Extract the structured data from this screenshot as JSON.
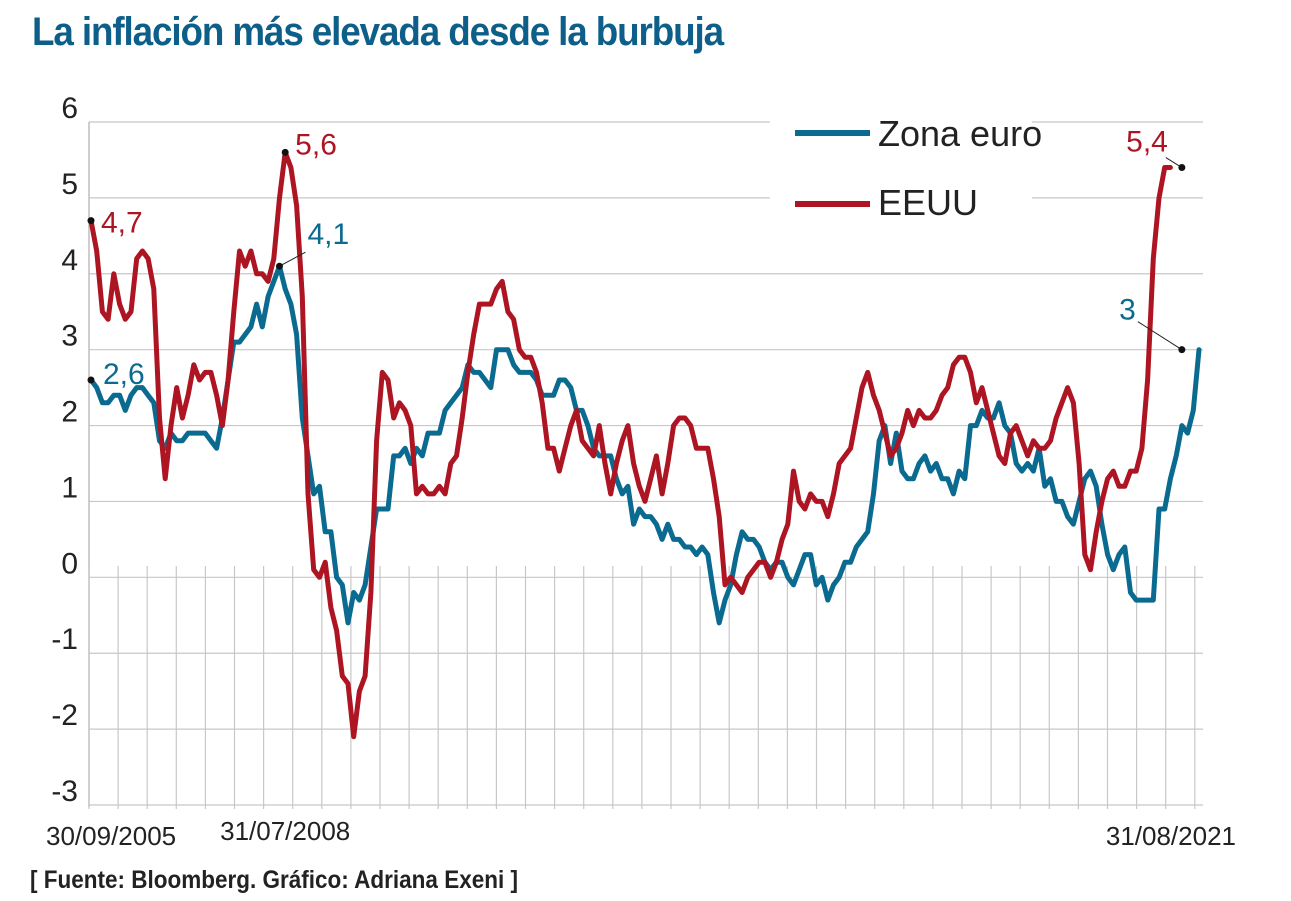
{
  "title": "La inflación más elevada desde la burbuja",
  "source": "[ Fuente: Bloomberg. Gráfico: Adriana Exeni ]",
  "colors": {
    "title": "#0d5f8a",
    "zona_euro": "#0a6a90",
    "eeuu": "#ad1523",
    "grid": "#c8c8c8",
    "text": "#222222"
  },
  "chart_data": {
    "type": "line",
    "title": "La inflación más elevada desde la burbuja",
    "xlabel": "",
    "ylabel": "",
    "ylim": [
      -3,
      6
    ],
    "yticks": [
      6,
      5,
      4,
      3,
      2,
      1,
      0,
      -1,
      -2,
      -3
    ],
    "ytick_labels": [
      "6",
      "5",
      "4",
      "3",
      "2",
      "1",
      "0",
      "-1",
      "-2",
      "-3"
    ],
    "x_start": "30/09/2005",
    "x_end": "31/08/2021",
    "x_frequency": "monthly",
    "xtick_labels": [
      {
        "label": "30/09/2005",
        "index": 0
      },
      {
        "label": "31/07/2008",
        "index": 34
      },
      {
        "label": "31/08/2021",
        "index": 191
      }
    ],
    "grid": true,
    "legend": {
      "position": "top-right",
      "entries": [
        "Zona euro",
        "EEUU"
      ]
    },
    "series": [
      {
        "name": "Zona euro",
        "values": [
          2.6,
          2.5,
          2.3,
          2.3,
          2.4,
          2.4,
          2.2,
          2.4,
          2.5,
          2.5,
          2.4,
          2.3,
          1.8,
          1.7,
          1.9,
          1.8,
          1.8,
          1.9,
          1.9,
          1.9,
          1.9,
          1.8,
          1.7,
          2.1,
          2.6,
          3.1,
          3.1,
          3.2,
          3.3,
          3.6,
          3.3,
          3.7,
          3.9,
          4.1,
          3.8,
          3.6,
          3.2,
          2.1,
          1.6,
          1.1,
          1.2,
          0.6,
          0.6,
          0.0,
          -0.1,
          -0.6,
          -0.2,
          -0.3,
          -0.1,
          0.4,
          0.9,
          0.9,
          0.9,
          1.6,
          1.6,
          1.7,
          1.5,
          1.7,
          1.6,
          1.9,
          1.9,
          1.9,
          2.2,
          2.3,
          2.4,
          2.5,
          2.8,
          2.7,
          2.7,
          2.6,
          2.5,
          3.0,
          3.0,
          3.0,
          2.8,
          2.7,
          2.7,
          2.7,
          2.6,
          2.4,
          2.4,
          2.4,
          2.6,
          2.6,
          2.5,
          2.2,
          2.2,
          2.0,
          1.7,
          1.6,
          1.6,
          1.6,
          1.3,
          1.1,
          1.2,
          0.7,
          0.9,
          0.8,
          0.8,
          0.7,
          0.5,
          0.7,
          0.5,
          0.5,
          0.4,
          0.4,
          0.3,
          0.4,
          0.3,
          -0.2,
          -0.6,
          -0.3,
          -0.1,
          0.3,
          0.6,
          0.5,
          0.5,
          0.4,
          0.2,
          0.1,
          0.2,
          0.2,
          0.0,
          -0.1,
          0.1,
          0.3,
          0.3,
          -0.1,
          0.0,
          -0.3,
          -0.1,
          0.0,
          0.2,
          0.2,
          0.4,
          0.5,
          0.6,
          1.1,
          1.8,
          2.0,
          1.5,
          1.9,
          1.4,
          1.3,
          1.3,
          1.5,
          1.6,
          1.4,
          1.5,
          1.3,
          1.3,
          1.1,
          1.4,
          1.3,
          2.0,
          2.0,
          2.2,
          2.1,
          2.1,
          2.3,
          2.0,
          1.9,
          1.5,
          1.4,
          1.5,
          1.4,
          1.7,
          1.2,
          1.3,
          1.0,
          1.0,
          0.8,
          0.7,
          1.0,
          1.3,
          1.4,
          1.2,
          0.7,
          0.3,
          0.1,
          0.3,
          0.4,
          -0.2,
          -0.3,
          -0.3,
          -0.3,
          -0.3,
          0.9,
          0.9,
          1.3,
          1.6,
          2.0,
          1.9,
          2.2,
          3.0
        ],
        "annotations": [
          {
            "label": "2,6",
            "index": 0,
            "value": 2.6
          },
          {
            "label": "4,1",
            "index": 33,
            "value": 4.1
          },
          {
            "label": "3",
            "index": 191,
            "value": 3.0
          }
        ]
      },
      {
        "name": "EEUU",
        "values": [
          4.7,
          4.3,
          3.5,
          3.4,
          4.0,
          3.6,
          3.4,
          3.5,
          4.2,
          4.3,
          4.2,
          3.8,
          2.1,
          1.3,
          2.0,
          2.5,
          2.1,
          2.4,
          2.8,
          2.6,
          2.7,
          2.7,
          2.4,
          2.0,
          2.6,
          3.5,
          4.3,
          4.1,
          4.3,
          4.0,
          4.0,
          3.9,
          4.2,
          5.0,
          5.6,
          5.4,
          4.9,
          3.7,
          1.1,
          0.1,
          0.0,
          0.2,
          -0.4,
          -0.7,
          -1.3,
          -1.4,
          -2.1,
          -1.5,
          -1.3,
          -0.2,
          1.8,
          2.7,
          2.6,
          2.1,
          2.3,
          2.2,
          2.0,
          1.1,
          1.2,
          1.1,
          1.1,
          1.2,
          1.1,
          1.5,
          1.6,
          2.1,
          2.7,
          3.2,
          3.6,
          3.6,
          3.6,
          3.8,
          3.9,
          3.5,
          3.4,
          3.0,
          2.9,
          2.9,
          2.7,
          2.3,
          1.7,
          1.7,
          1.4,
          1.7,
          2.0,
          2.2,
          1.8,
          1.7,
          1.6,
          2.0,
          1.5,
          1.1,
          1.5,
          1.8,
          2.0,
          1.5,
          1.2,
          1.0,
          1.3,
          1.6,
          1.1,
          1.5,
          2.0,
          2.1,
          2.1,
          2.0,
          1.7,
          1.7,
          1.7,
          1.3,
          0.8,
          -0.1,
          0.0,
          -0.1,
          -0.2,
          0.0,
          0.1,
          0.2,
          0.2,
          0.0,
          0.2,
          0.5,
          0.7,
          1.4,
          1.0,
          0.9,
          1.1,
          1.0,
          1.0,
          0.8,
          1.1,
          1.5,
          1.6,
          1.7,
          2.1,
          2.5,
          2.7,
          2.4,
          2.2,
          1.9,
          1.6,
          1.7,
          1.9,
          2.2,
          2.0,
          2.2,
          2.1,
          2.1,
          2.2,
          2.4,
          2.5,
          2.8,
          2.9,
          2.9,
          2.7,
          2.3,
          2.5,
          2.2,
          1.9,
          1.6,
          1.5,
          1.9,
          2.0,
          1.8,
          1.6,
          1.8,
          1.7,
          1.7,
          1.8,
          2.1,
          2.3,
          2.5,
          2.3,
          1.5,
          0.3,
          0.1,
          0.6,
          1.0,
          1.3,
          1.4,
          1.2,
          1.2,
          1.4,
          1.4,
          1.7,
          2.6,
          4.2,
          5.0,
          5.4,
          5.4
        ],
        "annotations": [
          {
            "label": "4,7",
            "index": 0,
            "value": 4.7
          },
          {
            "label": "5,6",
            "index": 34,
            "value": 5.6
          },
          {
            "label": "5,4",
            "index": 191,
            "value": 5.4
          }
        ]
      }
    ]
  }
}
